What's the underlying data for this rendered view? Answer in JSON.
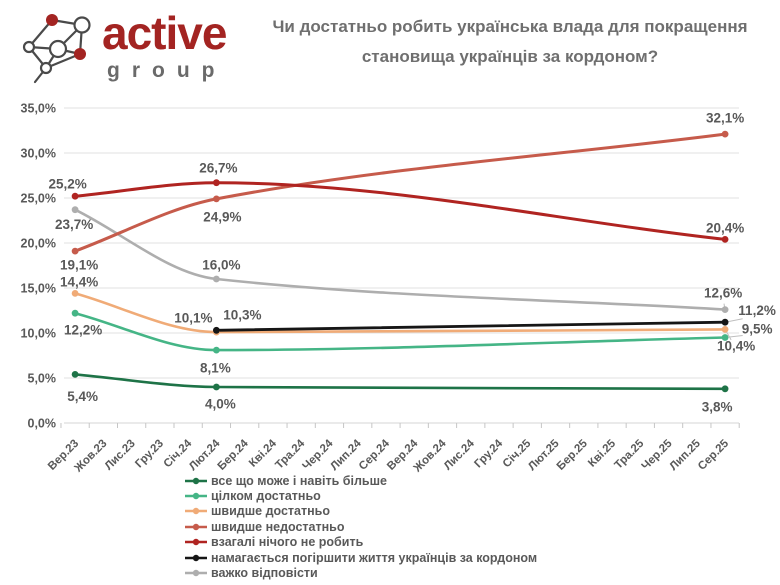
{
  "logo": {
    "brand": "active",
    "subtitle": "group"
  },
  "title": {
    "line1": "Чи достатньо робить українська влада для покращення",
    "line2": "становища українців за кордоном?"
  },
  "chart_data": {
    "type": "line",
    "x_categories": [
      "Вер.23",
      "Жов.23",
      "Лис.23",
      "Гру.23",
      "Січ.24",
      "Лют.24",
      "Бер.24",
      "Кві.24",
      "Тра.24",
      "Чер.24",
      "Лип.24",
      "Сер.24",
      "Вер.24",
      "Жов.24",
      "Лис.24",
      "Гру.24",
      "Січ.25",
      "Лют.25",
      "Бер.25",
      "Кві.25",
      "Тра.25",
      "Чер.25",
      "Лип.25",
      "Сер.25"
    ],
    "survey_waves": [
      "Вер.23",
      "Лют.24",
      "Сер.25"
    ],
    "y_axis": {
      "min": 0,
      "max": 35,
      "step": 5,
      "tick_labels": [
        "0,0%",
        "5,0%",
        "10,0%",
        "15,0%",
        "20,0%",
        "25,0%",
        "30,0%",
        "35,0%"
      ]
    },
    "grid": "horizontal",
    "legend_position": "bottom",
    "series": [
      {
        "name": "все що може і навіть більше",
        "color": "#1E7347",
        "points": [
          {
            "x": "Вер.23",
            "xi": 0,
            "v": 5.4,
            "label": "5,4%",
            "dx": 7.5,
            "dy": 26.5
          },
          {
            "x": "Лют.24",
            "xi": 5,
            "v": 4.0,
            "label": "4,0%",
            "dx": 4,
            "dy": 21.5
          },
          {
            "x": "Сер.25",
            "xi": 23,
            "v": 3.8,
            "label": "3,8%",
            "dx": -8,
            "dy": 22.5
          }
        ]
      },
      {
        "name": "цілком достатньо",
        "color": "#45B586",
        "points": [
          {
            "x": "Вер.23",
            "xi": 0,
            "v": 12.2,
            "label": "12,2%",
            "dx": 8,
            "dy": 21.5
          },
          {
            "x": "Лют.24",
            "xi": 5,
            "v": 8.1,
            "label": "8,1%",
            "dx": -1,
            "dy": 22.5
          },
          {
            "x": "Сер.25",
            "xi": 23,
            "v": 9.5,
            "label": "9,5%",
            "dx": 32,
            "dy": -4,
            "leader": true
          }
        ]
      },
      {
        "name": "швидше достатньо",
        "color": "#F0AB77",
        "points": [
          {
            "x": "Вер.23",
            "xi": 0,
            "v": 14.4,
            "label": "14,4%",
            "dx": 4,
            "dy": -7
          },
          {
            "x": "Лют.24",
            "xi": 5,
            "v": 10.1,
            "label": "10,1%",
            "dx": -23,
            "dy": -9.5
          },
          {
            "x": "Сер.25",
            "xi": 23,
            "v": 10.4,
            "label": "10,4%",
            "dx": 11,
            "dy": 21,
            "leader": true
          }
        ]
      },
      {
        "name": "швидше недостатньо",
        "color": "#C65B4B",
        "points": [
          {
            "x": "Вер.23",
            "xi": 0,
            "v": 19.1,
            "label": "19,1%",
            "dx": 4,
            "dy": 18.5
          },
          {
            "x": "Лют.24",
            "xi": 5,
            "v": 24.9,
            "label": "24,9%",
            "dx": 6,
            "dy": 22.5
          },
          {
            "x": "Сер.25",
            "xi": 23,
            "v": 32.1,
            "label": "32,1%",
            "dx": 0,
            "dy": -11.5
          }
        ]
      },
      {
        "name": "взагалі нічого не робить",
        "color": "#B02421",
        "points": [
          {
            "x": "Вер.23",
            "xi": 0,
            "v": 25.2,
            "label": "25,2%",
            "dx": -7.5,
            "dy": -7.5
          },
          {
            "x": "Лют.24",
            "xi": 5,
            "v": 26.7,
            "label": "26,7%",
            "dx": 2,
            "dy": -10
          },
          {
            "x": "Сер.25",
            "xi": 23,
            "v": 20.4,
            "label": "20,4%",
            "dx": 0,
            "dy": -7
          }
        ]
      },
      {
        "name": "намагається погіршити життя українців за кордоном",
        "color": "#161616",
        "points": [
          {
            "x": "Лют.24",
            "xi": 5,
            "v": 10.3,
            "label": "10,3%",
            "dx": 26,
            "dy": -11
          },
          {
            "x": "Сер.25",
            "xi": 23,
            "v": 11.2,
            "label": "11,2%",
            "dx": 32,
            "dy": -7,
            "leader": true
          }
        ]
      },
      {
        "name": "важко відповісти",
        "color": "#AEAEAE",
        "points": [
          {
            "x": "Вер.23",
            "xi": 0,
            "v": 23.7,
            "label": "23,7%",
            "dx": -1,
            "dy": 19.5
          },
          {
            "x": "Лют.24",
            "xi": 5,
            "v": 16.0,
            "label": "16,0%",
            "dx": 5,
            "dy": -9.5
          },
          {
            "x": "Сер.25",
            "xi": 23,
            "v": 12.6,
            "label": "12,6%",
            "dx": -2,
            "dy": -12,
            "leader": true
          }
        ]
      }
    ]
  }
}
